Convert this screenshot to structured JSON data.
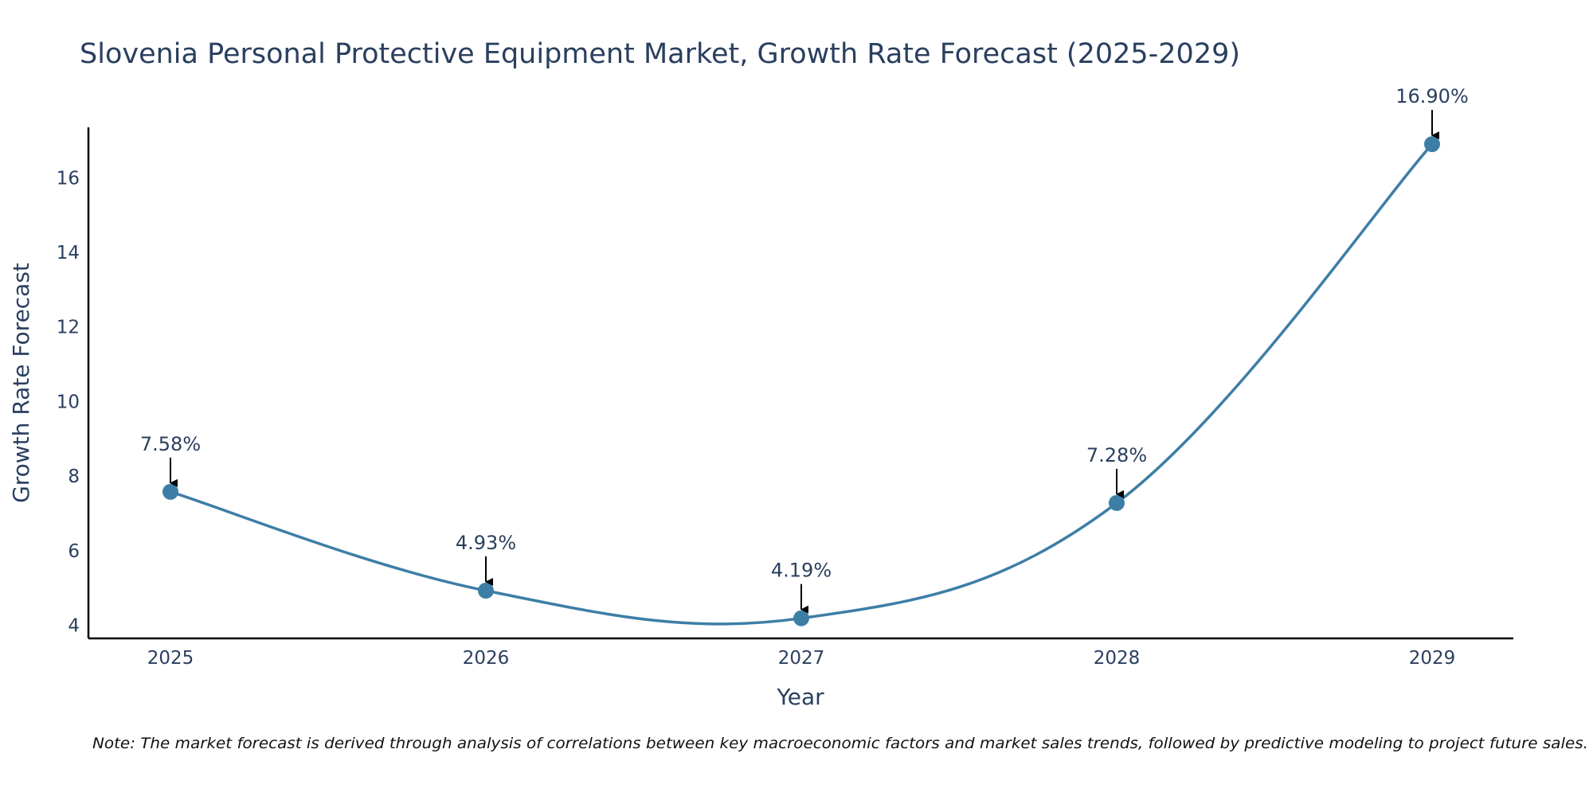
{
  "chart_data": {
    "type": "line",
    "title": "Slovenia Personal Protective Equipment Market, Growth Rate Forecast (2025-2029)",
    "xlabel": "Year",
    "ylabel": "Growth Rate Forecast",
    "categories": [
      "2025",
      "2026",
      "2027",
      "2028",
      "2029"
    ],
    "values": [
      7.58,
      4.93,
      4.19,
      7.28,
      16.9
    ],
    "data_labels": [
      "7.58%",
      "4.93%",
      "4.19%",
      "7.28%",
      "16.90%"
    ],
    "yticks": [
      4,
      6,
      8,
      10,
      12,
      14,
      16
    ],
    "ylim": [
      3.65,
      17.35
    ],
    "grid": false,
    "line_shape": "spline",
    "annotation_style": "arrow",
    "note": "Note: The market forecast is derived through analysis of correlations between key macroeconomic factors and market sales trends, followed by predictive modeling to project future sales."
  },
  "colors": {
    "line": "#3d7ea6",
    "marker": "#3d7ea6",
    "axis": "#000000",
    "text": "#2a3f5f",
    "arrow": "#000000"
  }
}
